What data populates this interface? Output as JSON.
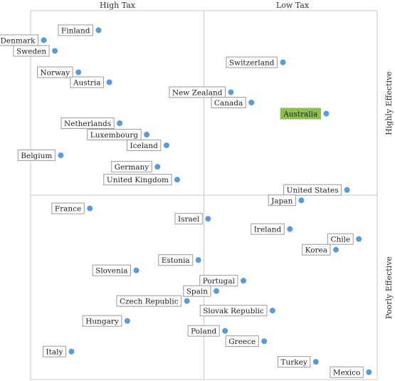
{
  "chart_data": {
    "type": "scatter",
    "title": "",
    "column_labels": [
      "High Tax",
      "Low Tax"
    ],
    "row_labels": [
      "Highly Effective",
      "Poorly Effective"
    ],
    "highlight_color": "#8bbf4f",
    "point_color": "#5b9bd5",
    "grid_color": "#c8c8c8",
    "x_lim": [
      0,
      100
    ],
    "y_lim": [
      0,
      100
    ],
    "points": [
      {
        "name": "Finland",
        "x": 19.6,
        "y": 94.7,
        "label_side": "left",
        "highlight": false
      },
      {
        "name": "Denmark",
        "x": 3.8,
        "y": 92.0,
        "label_side": "left",
        "highlight": false
      },
      {
        "name": "Sweden",
        "x": 7.0,
        "y": 89.1,
        "label_side": "left",
        "highlight": false
      },
      {
        "name": "Norway",
        "x": 13.8,
        "y": 83.3,
        "label_side": "left",
        "highlight": false
      },
      {
        "name": "Austria",
        "x": 22.7,
        "y": 80.6,
        "label_side": "left",
        "highlight": false
      },
      {
        "name": "Switzerland",
        "x": 72.8,
        "y": 86.0,
        "label_side": "left",
        "highlight": false
      },
      {
        "name": "New Zealand",
        "x": 57.8,
        "y": 77.9,
        "label_side": "left",
        "highlight": false
      },
      {
        "name": "Canada",
        "x": 63.7,
        "y": 75.1,
        "label_side": "left",
        "highlight": false
      },
      {
        "name": "Australia",
        "x": 85.3,
        "y": 72.1,
        "label_side": "left",
        "highlight": true
      },
      {
        "name": "Netherlands",
        "x": 25.7,
        "y": 69.5,
        "label_side": "left",
        "highlight": false
      },
      {
        "name": "Luxembourg",
        "x": 33.5,
        "y": 66.4,
        "label_side": "left",
        "highlight": false
      },
      {
        "name": "Iceland",
        "x": 39.2,
        "y": 63.5,
        "label_side": "left",
        "highlight": false
      },
      {
        "name": "Belgium",
        "x": 8.7,
        "y": 60.8,
        "label_side": "left",
        "highlight": false
      },
      {
        "name": "Germany",
        "x": 36.6,
        "y": 57.7,
        "label_side": "left",
        "highlight": false
      },
      {
        "name": "United Kingdom",
        "x": 42.3,
        "y": 54.2,
        "label_side": "left",
        "highlight": false
      },
      {
        "name": "United States",
        "x": 91.3,
        "y": 51.4,
        "label_side": "left",
        "highlight": false
      },
      {
        "name": "Japan",
        "x": 78.1,
        "y": 48.6,
        "label_side": "left",
        "highlight": false
      },
      {
        "name": "France",
        "x": 17.1,
        "y": 46.4,
        "label_side": "left",
        "highlight": false
      },
      {
        "name": "Israel",
        "x": 51.2,
        "y": 43.6,
        "label_side": "left",
        "highlight": false
      },
      {
        "name": "Ireland",
        "x": 74.8,
        "y": 40.8,
        "label_side": "left",
        "highlight": false
      },
      {
        "name": "Chile",
        "x": 94.7,
        "y": 38.1,
        "label_side": "left",
        "highlight": false
      },
      {
        "name": "Korea",
        "x": 88.1,
        "y": 35.2,
        "label_side": "left",
        "highlight": false
      },
      {
        "name": "Estonia",
        "x": 48.4,
        "y": 32.4,
        "label_side": "left",
        "highlight": false
      },
      {
        "name": "Slovenia",
        "x": 30.5,
        "y": 29.6,
        "label_side": "left",
        "highlight": false
      },
      {
        "name": "Portugal",
        "x": 61.4,
        "y": 26.8,
        "label_side": "left",
        "highlight": false
      },
      {
        "name": "Spain",
        "x": 53.6,
        "y": 24.0,
        "label_side": "left",
        "highlight": false
      },
      {
        "name": "Czech Republic",
        "x": 45.1,
        "y": 21.3,
        "label_side": "left",
        "highlight": false
      },
      {
        "name": "Slovak Republic",
        "x": 69.8,
        "y": 18.7,
        "label_side": "left",
        "highlight": false
      },
      {
        "name": "Hungary",
        "x": 27.9,
        "y": 15.9,
        "label_side": "left",
        "highlight": false
      },
      {
        "name": "Poland",
        "x": 56.1,
        "y": 13.2,
        "label_side": "left",
        "highlight": false
      },
      {
        "name": "Greece",
        "x": 67.4,
        "y": 10.4,
        "label_side": "left",
        "highlight": false
      },
      {
        "name": "Italy",
        "x": 11.8,
        "y": 7.6,
        "label_side": "left",
        "highlight": false
      },
      {
        "name": "Turkey",
        "x": 82.3,
        "y": 4.8,
        "label_side": "left",
        "highlight": false
      },
      {
        "name": "Mexico",
        "x": 97.6,
        "y": 2.0,
        "label_side": "left",
        "highlight": false
      }
    ]
  }
}
